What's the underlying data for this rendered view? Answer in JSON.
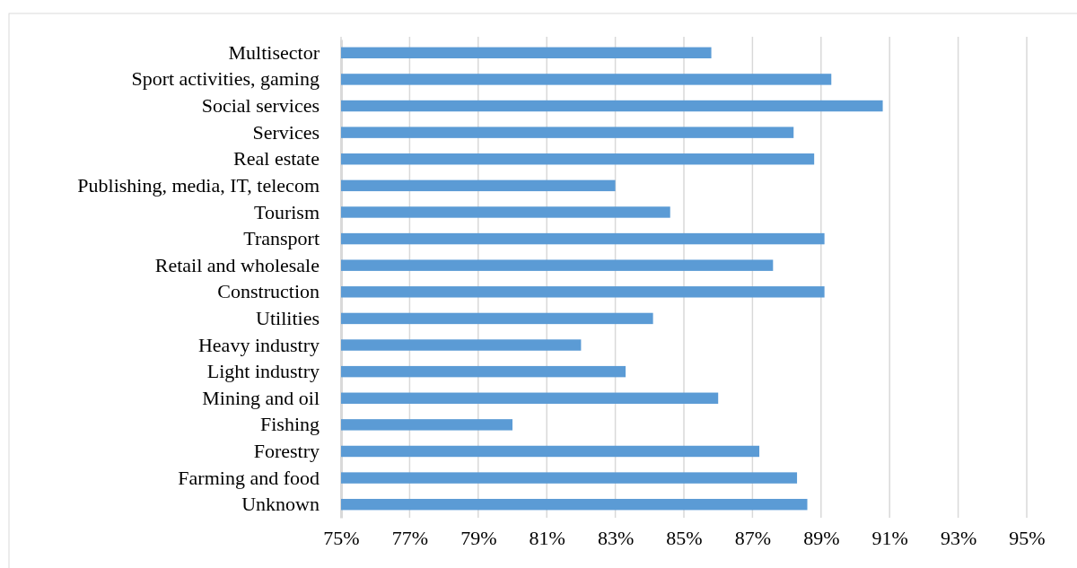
{
  "chart_data": {
    "type": "bar",
    "orientation": "horizontal",
    "categories": [
      "Multisector",
      "Sport activities, gaming",
      "Social services",
      "Services",
      "Real estate",
      "Publishing, media, IT, telecom",
      "Tourism",
      "Transport",
      "Retail and wholesale",
      "Construction",
      "Utilities",
      "Heavy industry",
      "Light industry",
      "Mining and oil",
      "Fishing",
      "Forestry",
      "Farming and food",
      "Unknown"
    ],
    "values": [
      85.8,
      89.3,
      90.8,
      88.2,
      88.8,
      83.0,
      84.6,
      89.1,
      87.6,
      89.1,
      84.1,
      82.0,
      83.3,
      86.0,
      80.0,
      87.2,
      88.3,
      88.6
    ],
    "color": "#5b9bd5",
    "xlim": [
      75,
      95
    ],
    "xticks": [
      {
        "value": 75,
        "label": "75%"
      },
      {
        "value": 77,
        "label": "77%"
      },
      {
        "value": 79,
        "label": "79%"
      },
      {
        "value": 81,
        "label": "81%"
      },
      {
        "value": 83,
        "label": "83%"
      },
      {
        "value": 85,
        "label": "85%"
      },
      {
        "value": 87,
        "label": "87%"
      },
      {
        "value": 89,
        "label": "89%"
      },
      {
        "value": 91,
        "label": "91%"
      },
      {
        "value": 93,
        "label": "93%"
      },
      {
        "value": 95,
        "label": "95%"
      }
    ],
    "grid": "x"
  }
}
